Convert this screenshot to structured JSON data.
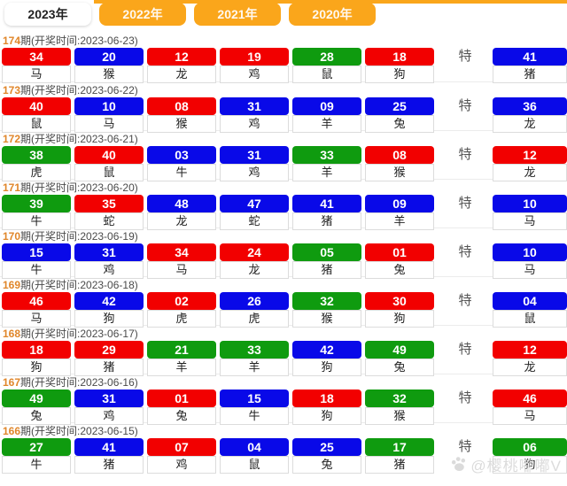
{
  "tabs": [
    {
      "label": "2023年",
      "active": true
    },
    {
      "label": "2022年",
      "active": false
    },
    {
      "label": "2021年",
      "active": false
    },
    {
      "label": "2020年",
      "active": false
    }
  ],
  "te_label": "特",
  "colors": {
    "red": "#f20000",
    "blue": "#0909e8",
    "green": "#0f9b0f",
    "orange": "#faa61b"
  },
  "watermark": {
    "text": "@樱桃嘟嘟V",
    "icon": "paw-icon"
  },
  "rows": [
    {
      "issue": "174",
      "suffix": "期(开奖时间:2023-06-23)",
      "numbers": [
        {
          "value": "34",
          "color": "red",
          "animal": "马"
        },
        {
          "value": "20",
          "color": "blue",
          "animal": "猴"
        },
        {
          "value": "12",
          "color": "red",
          "animal": "龙"
        },
        {
          "value": "19",
          "color": "red",
          "animal": "鸡"
        },
        {
          "value": "28",
          "color": "green",
          "animal": "鼠"
        },
        {
          "value": "18",
          "color": "red",
          "animal": "狗"
        }
      ],
      "special": {
        "value": "41",
        "color": "blue",
        "animal": "猪"
      }
    },
    {
      "issue": "173",
      "suffix": "期(开奖时间:2023-06-22)",
      "numbers": [
        {
          "value": "40",
          "color": "red",
          "animal": "鼠"
        },
        {
          "value": "10",
          "color": "blue",
          "animal": "马"
        },
        {
          "value": "08",
          "color": "red",
          "animal": "猴"
        },
        {
          "value": "31",
          "color": "blue",
          "animal": "鸡"
        },
        {
          "value": "09",
          "color": "blue",
          "animal": "羊"
        },
        {
          "value": "25",
          "color": "blue",
          "animal": "兔"
        }
      ],
      "special": {
        "value": "36",
        "color": "blue",
        "animal": "龙"
      }
    },
    {
      "issue": "172",
      "suffix": "期(开奖时间:2023-06-21)",
      "numbers": [
        {
          "value": "38",
          "color": "green",
          "animal": "虎"
        },
        {
          "value": "40",
          "color": "red",
          "animal": "鼠"
        },
        {
          "value": "03",
          "color": "blue",
          "animal": "牛"
        },
        {
          "value": "31",
          "color": "blue",
          "animal": "鸡"
        },
        {
          "value": "33",
          "color": "green",
          "animal": "羊"
        },
        {
          "value": "08",
          "color": "red",
          "animal": "猴"
        }
      ],
      "special": {
        "value": "12",
        "color": "red",
        "animal": "龙"
      }
    },
    {
      "issue": "171",
      "suffix": "期(开奖时间:2023-06-20)",
      "numbers": [
        {
          "value": "39",
          "color": "green",
          "animal": "牛"
        },
        {
          "value": "35",
          "color": "red",
          "animal": "蛇"
        },
        {
          "value": "48",
          "color": "blue",
          "animal": "龙"
        },
        {
          "value": "47",
          "color": "blue",
          "animal": "蛇"
        },
        {
          "value": "41",
          "color": "blue",
          "animal": "猪"
        },
        {
          "value": "09",
          "color": "blue",
          "animal": "羊"
        }
      ],
      "special": {
        "value": "10",
        "color": "blue",
        "animal": "马"
      }
    },
    {
      "issue": "170",
      "suffix": "期(开奖时间:2023-06-19)",
      "numbers": [
        {
          "value": "15",
          "color": "blue",
          "animal": "牛"
        },
        {
          "value": "31",
          "color": "blue",
          "animal": "鸡"
        },
        {
          "value": "34",
          "color": "red",
          "animal": "马"
        },
        {
          "value": "24",
          "color": "red",
          "animal": "龙"
        },
        {
          "value": "05",
          "color": "green",
          "animal": "猪"
        },
        {
          "value": "01",
          "color": "red",
          "animal": "兔"
        }
      ],
      "special": {
        "value": "10",
        "color": "blue",
        "animal": "马"
      }
    },
    {
      "issue": "169",
      "suffix": "期(开奖时间:2023-06-18)",
      "numbers": [
        {
          "value": "46",
          "color": "red",
          "animal": "马"
        },
        {
          "value": "42",
          "color": "blue",
          "animal": "狗"
        },
        {
          "value": "02",
          "color": "red",
          "animal": "虎"
        },
        {
          "value": "26",
          "color": "blue",
          "animal": "虎"
        },
        {
          "value": "32",
          "color": "green",
          "animal": "猴"
        },
        {
          "value": "30",
          "color": "red",
          "animal": "狗"
        }
      ],
      "special": {
        "value": "04",
        "color": "blue",
        "animal": "鼠"
      }
    },
    {
      "issue": "168",
      "suffix": "期(开奖时间:2023-06-17)",
      "numbers": [
        {
          "value": "18",
          "color": "red",
          "animal": "狗"
        },
        {
          "value": "29",
          "color": "red",
          "animal": "猪"
        },
        {
          "value": "21",
          "color": "green",
          "animal": "羊"
        },
        {
          "value": "33",
          "color": "green",
          "animal": "羊"
        },
        {
          "value": "42",
          "color": "blue",
          "animal": "狗"
        },
        {
          "value": "49",
          "color": "green",
          "animal": "兔"
        }
      ],
      "special": {
        "value": "12",
        "color": "red",
        "animal": "龙"
      }
    },
    {
      "issue": "167",
      "suffix": "期(开奖时间:2023-06-16)",
      "numbers": [
        {
          "value": "49",
          "color": "green",
          "animal": "兔"
        },
        {
          "value": "31",
          "color": "blue",
          "animal": "鸡"
        },
        {
          "value": "01",
          "color": "red",
          "animal": "兔"
        },
        {
          "value": "15",
          "color": "blue",
          "animal": "牛"
        },
        {
          "value": "18",
          "color": "red",
          "animal": "狗"
        },
        {
          "value": "32",
          "color": "green",
          "animal": "猴"
        }
      ],
      "special": {
        "value": "46",
        "color": "red",
        "animal": "马"
      }
    },
    {
      "issue": "166",
      "suffix": "期(开奖时间:2023-06-15)",
      "numbers": [
        {
          "value": "27",
          "color": "green",
          "animal": "牛"
        },
        {
          "value": "41",
          "color": "blue",
          "animal": "猪"
        },
        {
          "value": "07",
          "color": "red",
          "animal": "鸡"
        },
        {
          "value": "04",
          "color": "blue",
          "animal": "鼠"
        },
        {
          "value": "25",
          "color": "blue",
          "animal": "兔"
        },
        {
          "value": "17",
          "color": "green",
          "animal": "猪"
        }
      ],
      "special": {
        "value": "06",
        "color": "green",
        "animal": "狗"
      }
    }
  ]
}
